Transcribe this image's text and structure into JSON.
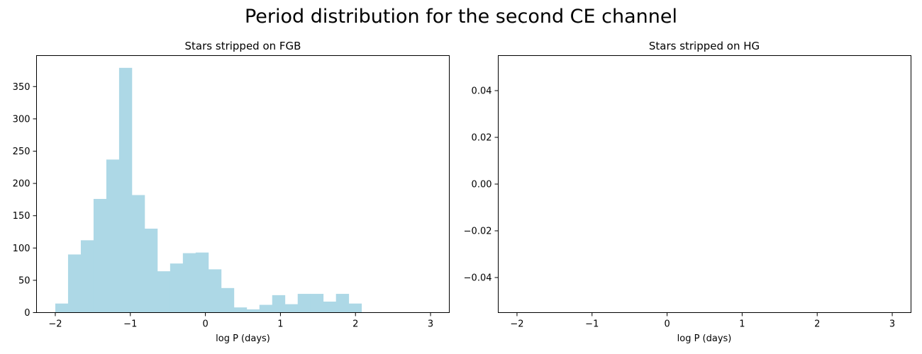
{
  "figure": {
    "suptitle": "Period distribution for the second CE channel"
  },
  "chart_data": [
    {
      "type": "bar",
      "title": "Stars stripped on FGB",
      "xlabel": "log P (days)",
      "ylabel": "",
      "xlim": [
        -2.25,
        3.25
      ],
      "ylim": [
        0,
        398
      ],
      "xticks": [
        -2,
        -1,
        0,
        1,
        2,
        3
      ],
      "xtick_labels": [
        "−2",
        "−1",
        "0",
        "1",
        "2",
        "3"
      ],
      "yticks": [
        0,
        50,
        100,
        150,
        200,
        250,
        300,
        350
      ],
      "ytick_labels": [
        "0",
        "50",
        "100",
        "150",
        "200",
        "250",
        "300",
        "350"
      ],
      "bin_edges": [
        -2.0,
        -1.83,
        -1.66,
        -1.49,
        -1.32,
        -1.15,
        -0.98,
        -0.81,
        -0.64,
        -0.47,
        -0.3,
        -0.13,
        0.04,
        0.21,
        0.38,
        0.55,
        0.72,
        0.89,
        1.06,
        1.23,
        1.4,
        1.57,
        1.74,
        1.91,
        2.08,
        2.25,
        2.42,
        2.59,
        2.76,
        2.93
      ],
      "counts": [
        14,
        90,
        112,
        176,
        237,
        379,
        182,
        130,
        64,
        76,
        92,
        93,
        67,
        38,
        8,
        5,
        12,
        27,
        13,
        29,
        29,
        17,
        29,
        14,
        0,
        0,
        0,
        0,
        0
      ],
      "bar_color": "#add8e6",
      "grid": false
    },
    {
      "type": "bar",
      "title": "Stars stripped on HG",
      "xlabel": "log P (days)",
      "ylabel": "",
      "xlim": [
        -2.25,
        3.25
      ],
      "ylim": [
        -0.055,
        0.055
      ],
      "xticks": [
        -2,
        -1,
        0,
        1,
        2,
        3
      ],
      "xtick_labels": [
        "−2",
        "−1",
        "0",
        "1",
        "2",
        "3"
      ],
      "yticks": [
        -0.04,
        -0.02,
        0.0,
        0.02,
        0.04
      ],
      "ytick_labels": [
        "−0.04",
        "−0.02",
        "0.00",
        "0.02",
        "0.04"
      ],
      "bin_edges": [],
      "counts": [],
      "bar_color": "#add8e6",
      "grid": false
    }
  ]
}
